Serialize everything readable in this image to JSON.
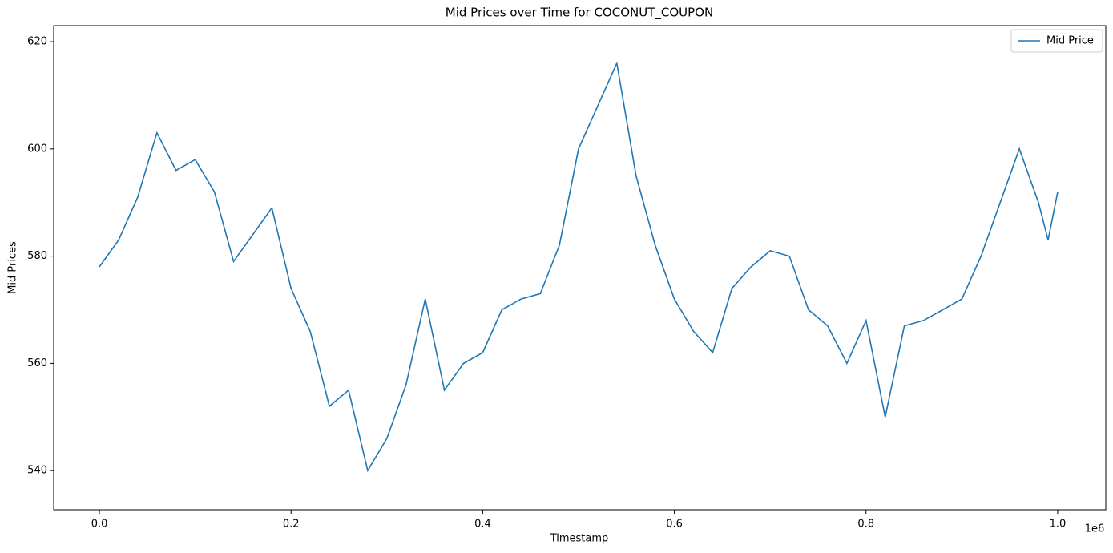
{
  "chart_data": {
    "type": "line",
    "title": "Mid Prices over Time for COCONUT_COUPON",
    "x_label": "Timestamp",
    "y_label": "Mid Prices",
    "x_offset_label": "1e6",
    "x": [
      0,
      20000,
      40000,
      60000,
      80000,
      100000,
      120000,
      140000,
      160000,
      180000,
      200000,
      220000,
      240000,
      260000,
      280000,
      300000,
      320000,
      340000,
      360000,
      380000,
      400000,
      420000,
      440000,
      460000,
      480000,
      500000,
      520000,
      540000,
      560000,
      580000,
      600000,
      620000,
      640000,
      660000,
      680000,
      700000,
      720000,
      740000,
      760000,
      780000,
      800000,
      820000,
      840000,
      860000,
      880000,
      900000,
      920000,
      940000,
      960000,
      980000,
      990000,
      1000000
    ],
    "series": [
      {
        "name": "Mid Price",
        "color": "#1f77b4",
        "values": [
          578,
          583,
          591,
          603,
          596,
          598,
          592,
          579,
          584,
          589,
          574,
          566,
          552,
          555,
          540,
          546,
          556,
          572,
          555,
          560,
          562,
          570,
          572,
          573,
          582,
          600,
          608,
          616,
          595,
          582,
          572,
          566,
          562,
          574,
          578,
          581,
          580,
          570,
          567,
          560,
          568,
          550,
          567,
          568,
          570,
          572,
          580,
          590,
          600,
          590,
          583,
          592
        ]
      }
    ],
    "xlim": [
      -47700,
      1050200
    ],
    "ylim": [
      532.7,
      623
    ],
    "xticks": [
      {
        "value": 0,
        "label": "0.0"
      },
      {
        "value": 200000,
        "label": "0.2"
      },
      {
        "value": 400000,
        "label": "0.4"
      },
      {
        "value": 600000,
        "label": "0.6"
      },
      {
        "value": 800000,
        "label": "0.8"
      },
      {
        "value": 1000000,
        "label": "1.0"
      }
    ],
    "yticks": [
      540,
      560,
      580,
      600,
      620
    ],
    "legend": "upper right"
  }
}
